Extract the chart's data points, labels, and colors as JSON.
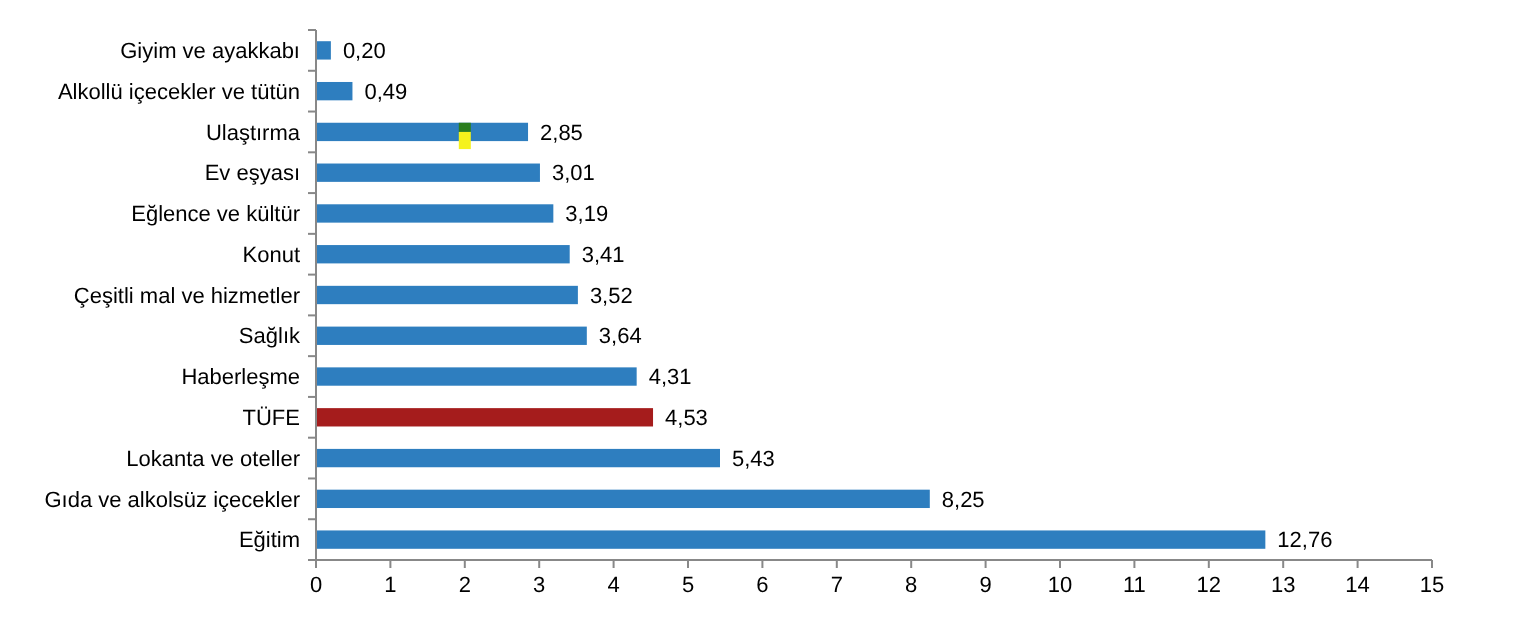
{
  "chart_data": {
    "type": "bar",
    "orientation": "horizontal",
    "categories": [
      "Giyim ve ayakkabı",
      "Alkollü içecekler ve tütün",
      "Ulaştırma",
      "Ev eşyası",
      "Eğlence ve kültür",
      "Konut",
      "Çeşitli mal ve hizmetler",
      "Sağlık",
      "Haberleşme",
      "TÜFE",
      "Lokanta ve oteller",
      "Gıda ve alkolsüz içecekler",
      "Eğitim"
    ],
    "values": [
      0.2,
      0.49,
      2.85,
      3.01,
      3.19,
      3.41,
      3.52,
      3.64,
      4.31,
      4.53,
      5.43,
      8.25,
      12.76
    ],
    "value_labels": [
      "0,20",
      "0,49",
      "2,85",
      "3,01",
      "3,19",
      "3,41",
      "3,52",
      "3,64",
      "4,31",
      "4,53",
      "5,43",
      "8,25",
      "12,76"
    ],
    "colors": [
      "#2e7ebf",
      "#2e7ebf",
      "#2e7ebf",
      "#2e7ebf",
      "#2e7ebf",
      "#2e7ebf",
      "#2e7ebf",
      "#2e7ebf",
      "#2e7ebf",
      "#a51c1c",
      "#2e7ebf",
      "#2e7ebf",
      "#2e7ebf"
    ],
    "xlim": [
      0,
      15
    ],
    "xticks": [
      0,
      1,
      2,
      3,
      4,
      5,
      6,
      7,
      8,
      9,
      10,
      11,
      12,
      13,
      14,
      15
    ],
    "grid": false
  }
}
